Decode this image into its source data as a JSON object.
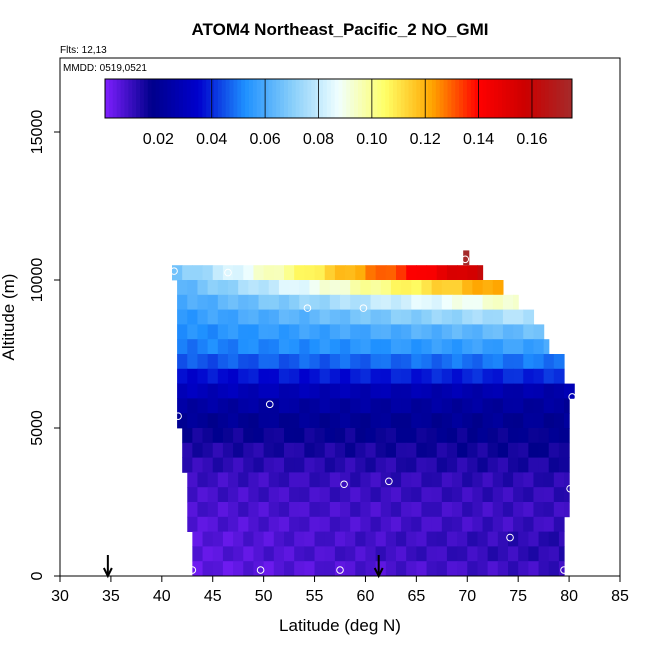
{
  "chart_data": {
    "type": "heatmap",
    "title": "ATOM4 Northeast_Pacific_2 NO_GMI",
    "flights_label": "Flts: 12,13",
    "mmdd_label": "MMDD: 0519,0521",
    "xlabel": "Latitude (deg N)",
    "ylabel": "Altitude (m)",
    "xlim": [
      30,
      85
    ],
    "ylim": [
      0,
      17500
    ],
    "x_ticks": [
      30,
      35,
      40,
      45,
      50,
      55,
      60,
      65,
      70,
      75,
      80,
      85
    ],
    "x_tick_labels": [
      "30",
      "35",
      "40",
      "45",
      "50",
      "55",
      "60",
      "65",
      "70",
      "75",
      "80",
      "85"
    ],
    "y_ticks": [
      0,
      5000,
      10000,
      15000
    ],
    "y_tick_labels": [
      "0",
      "5000",
      "10000",
      "15000"
    ],
    "colorbar": {
      "range": [
        0,
        0.175
      ],
      "colors": [
        "#7f1fff",
        "#00008b",
        "#0000cd",
        "#1e90ff",
        "#87cefa",
        "#f0ffff",
        "#ffff66",
        "#ffa500",
        "#ff0000",
        "#cc0000",
        "#a52a2a"
      ],
      "ticks": [
        0.02,
        0.04,
        0.06,
        0.08,
        0.1,
        0.12,
        0.14,
        0.16
      ],
      "tick_labels": [
        "0.02",
        "0.04",
        "0.06",
        "0.08",
        "0.10",
        "0.12",
        "0.14",
        "0.16"
      ],
      "bin_edges": [
        0.04,
        0.06,
        0.08,
        0.1,
        0.12,
        0.14,
        0.16
      ]
    },
    "levels": [
      {
        "alt": 10250,
        "lat_min": 41,
        "lat_max": 71.5,
        "v_start": 0.065,
        "v_end": 0.16
      },
      {
        "alt": 9750,
        "lat_min": 41.5,
        "lat_max": 73.5,
        "v_start": 0.062,
        "v_end": 0.125
      },
      {
        "alt": 9250,
        "lat_min": 41.5,
        "lat_max": 75.0,
        "v_start": 0.058,
        "v_end": 0.095
      },
      {
        "alt": 8750,
        "lat_min": 41.5,
        "lat_max": 76.5,
        "v_start": 0.055,
        "v_end": 0.078
      },
      {
        "alt": 8250,
        "lat_min": 41.5,
        "lat_max": 77.5,
        "v_start": 0.052,
        "v_end": 0.066
      },
      {
        "alt": 7750,
        "lat_min": 41.5,
        "lat_max": 78.0,
        "v_start": 0.05,
        "v_end": 0.058
      },
      {
        "alt": 7250,
        "lat_min": 41.5,
        "lat_max": 79.5,
        "v_start": 0.045,
        "v_end": 0.05
      },
      {
        "alt": 6750,
        "lat_min": 41.5,
        "lat_max": 79.5,
        "v_start": 0.036,
        "v_end": 0.04
      },
      {
        "alt": 6250,
        "lat_min": 41.5,
        "lat_max": 80.5,
        "v_start": 0.03,
        "v_end": 0.026
      },
      {
        "alt": 5750,
        "lat_min": 41.5,
        "lat_max": 80.0,
        "v_start": 0.024,
        "v_end": 0.022
      },
      {
        "alt": 5250,
        "lat_min": 41.5,
        "lat_max": 80.0,
        "v_start": 0.02,
        "v_end": 0.02
      },
      {
        "alt": 4750,
        "lat_min": 42.0,
        "lat_max": 80.0,
        "v_start": 0.016,
        "v_end": 0.018
      },
      {
        "alt": 4250,
        "lat_min": 42.0,
        "lat_max": 80.0,
        "v_start": 0.013,
        "v_end": 0.016
      },
      {
        "alt": 3750,
        "lat_min": 42.0,
        "lat_max": 80.0,
        "v_start": 0.011,
        "v_end": 0.014
      },
      {
        "alt": 3250,
        "lat_min": 42.5,
        "lat_max": 80.0,
        "v_start": 0.009,
        "v_end": 0.012
      },
      {
        "alt": 2750,
        "lat_min": 42.5,
        "lat_max": 80.0,
        "v_start": 0.008,
        "v_end": 0.011
      },
      {
        "alt": 2250,
        "lat_min": 42.5,
        "lat_max": 80.0,
        "v_start": 0.007,
        "v_end": 0.01
      },
      {
        "alt": 1750,
        "lat_min": 42.5,
        "lat_max": 79.5,
        "v_start": 0.006,
        "v_end": 0.01
      },
      {
        "alt": 1250,
        "lat_min": 43.0,
        "lat_max": 79.5,
        "v_start": 0.005,
        "v_end": 0.012
      },
      {
        "alt": 750,
        "lat_min": 43.0,
        "lat_max": 79.5,
        "v_start": 0.005,
        "v_end": 0.012
      },
      {
        "alt": 250,
        "lat_min": 43.0,
        "lat_max": 79.5,
        "v_start": 0.004,
        "v_end": 0.01
      }
    ],
    "extra_cells": [
      {
        "lat": 69.9,
        "alt": 10750,
        "value": 0.175
      }
    ],
    "sample_points": [
      {
        "lat": 41.2,
        "alt": 10300
      },
      {
        "lat": 46.5,
        "alt": 10250
      },
      {
        "lat": 69.8,
        "alt": 10700
      },
      {
        "lat": 54.3,
        "alt": 9050
      },
      {
        "lat": 59.8,
        "alt": 9050
      },
      {
        "lat": 77.0,
        "alt": 8800
      },
      {
        "lat": 80.3,
        "alt": 6050
      },
      {
        "lat": 50.6,
        "alt": 5800
      },
      {
        "lat": 41.6,
        "alt": 5400
      },
      {
        "lat": 57.9,
        "alt": 3100
      },
      {
        "lat": 62.3,
        "alt": 3200
      },
      {
        "lat": 80.1,
        "alt": 2950
      },
      {
        "lat": 74.2,
        "alt": 1300
      },
      {
        "lat": 43.0,
        "alt": 200
      },
      {
        "lat": 49.7,
        "alt": 200
      },
      {
        "lat": 57.5,
        "alt": 200
      },
      {
        "lat": 79.5,
        "alt": 200
      }
    ],
    "arrows": [
      34.7,
      61.3
    ]
  }
}
